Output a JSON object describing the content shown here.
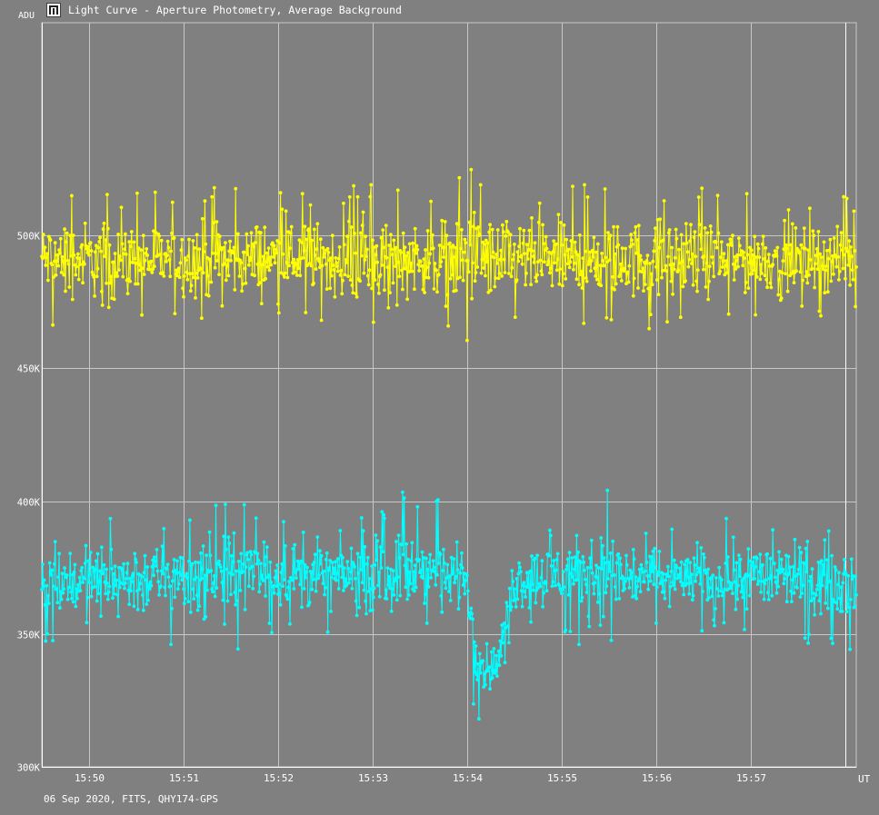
{
  "title": "Light Curve - Aperture Photometry, Average Background",
  "ylabel": "ADU",
  "xlabel": "UT",
  "footer": "06 Sep 2020, FITS, QHY174-GPS",
  "colors": {
    "background": "#808080",
    "grid": "#c8c8c8",
    "axis": "#ffffff",
    "series_1": "#ffff00",
    "series_2": "#00ffff"
  },
  "icon": "light-curve-app-icon",
  "chart_data": {
    "type": "line",
    "ylim": [
      300000,
      580000
    ],
    "y_ticks": [
      {
        "value": 300000,
        "label": "300K"
      },
      {
        "value": 350000,
        "label": "350K"
      },
      {
        "value": 400000,
        "label": "400K"
      },
      {
        "value": 450000,
        "label": "450K"
      },
      {
        "value": 500000,
        "label": "500K"
      }
    ],
    "x_time_range": [
      "15:49:30",
      "15:58:07"
    ],
    "x_ticks": [
      "15:50",
      "15:51",
      "15:52",
      "15:53",
      "15:54",
      "15:55",
      "15:56",
      "15:57"
    ],
    "grid": true,
    "series": [
      {
        "color": "#ffff00",
        "time": [
          "15:49:30",
          "15:50:00",
          "15:50:30",
          "15:51:00",
          "15:51:30",
          "15:52:00",
          "15:52:30",
          "15:53:00",
          "15:53:30",
          "15:54:00",
          "15:54:30",
          "15:55:00",
          "15:55:30",
          "15:56:00",
          "15:56:30",
          "15:57:00",
          "15:57:30",
          "15:58:00"
        ],
        "mean": [
          491000,
          491000,
          490500,
          491000,
          491000,
          491500,
          491000,
          491000,
          491500,
          491000,
          491000,
          491000,
          490500,
          491000,
          491000,
          491000,
          491000,
          491000
        ],
        "min": [
          465000,
          466000,
          468000,
          467000,
          466000,
          465000,
          466000,
          467000,
          468000,
          460000,
          467000,
          464000,
          466000,
          463000,
          468000,
          469000,
          469000,
          470000
        ],
        "max": [
          513000,
          521000,
          516000,
          519000,
          521000,
          516000,
          519000,
          524000,
          517000,
          527000,
          520000,
          520000,
          518000,
          522000,
          519000,
          517000,
          517000,
          515000
        ]
      },
      {
        "color": "#00ffff",
        "time": [
          "15:49:30",
          "15:50:00",
          "15:50:30",
          "15:51:00",
          "15:51:30",
          "15:52:00",
          "15:52:30",
          "15:53:00",
          "15:53:30",
          "15:54:00",
          "15:54:05",
          "15:54:10",
          "15:54:15",
          "15:54:20",
          "15:54:30",
          "15:55:00",
          "15:55:30",
          "15:56:00",
          "15:56:30",
          "15:57:00",
          "15:57:30",
          "15:58:00"
        ],
        "mean": [
          370000,
          370000,
          370500,
          371000,
          372000,
          373000,
          372000,
          372000,
          374000,
          371000,
          344000,
          338000,
          337000,
          340000,
          370000,
          373000,
          372000,
          371000,
          371000,
          372000,
          371000,
          370000
        ],
        "min": [
          345000,
          342000,
          345000,
          342000,
          340000,
          348000,
          345000,
          343000,
          350000,
          350000,
          314000,
          320000,
          326000,
          330000,
          350000,
          348000,
          340000,
          348000,
          350000,
          348000,
          346000,
          338000
        ],
        "max": [
          388000,
          392000,
          398000,
          392000,
          402000,
          396000,
          392000,
          396000,
          408000,
          390000,
          357000,
          352000,
          356000,
          358000,
          390000,
          394000,
          405000,
          390000,
          390000,
          400000,
          390000,
          390000
        ]
      }
    ]
  }
}
